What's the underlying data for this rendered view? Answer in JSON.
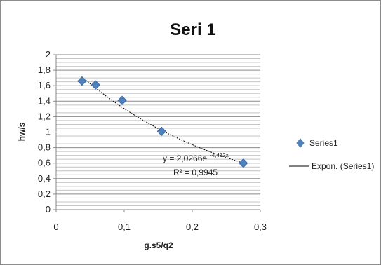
{
  "chart_data": {
    "type": "scatter",
    "title": "Seri 1",
    "xlabel": "g.s5/q2",
    "ylabel": "hw/s",
    "xlim": [
      0,
      0.3
    ],
    "ylim": [
      0,
      2
    ],
    "x_ticks": [
      "0",
      "0,1",
      "0,2",
      "0,3"
    ],
    "y_ticks": [
      "0",
      "0,2",
      "0,4",
      "0,6",
      "0,8",
      "1",
      "1,2",
      "1,4",
      "1,6",
      "1,8",
      "2"
    ],
    "series": [
      {
        "name": "Series1",
        "color": "#4f81bd",
        "marker": "diamond",
        "x": [
          0.038,
          0.058,
          0.097,
          0.155,
          0.275
        ],
        "y": [
          1.66,
          1.61,
          1.41,
          1.01,
          0.6
        ]
      }
    ],
    "trendline": {
      "name": "Expon. (Series1)",
      "type": "exponential",
      "equation_text": "y = 2,0266e",
      "equation_exponent": "-4,412x",
      "r2_text": "R² = 0,9945",
      "a": 2.0266,
      "b": -4.412,
      "x_range": [
        0.038,
        0.275
      ],
      "color": "#000000"
    },
    "grid": "horizontal-major-and-minor",
    "legend_position": "right"
  }
}
